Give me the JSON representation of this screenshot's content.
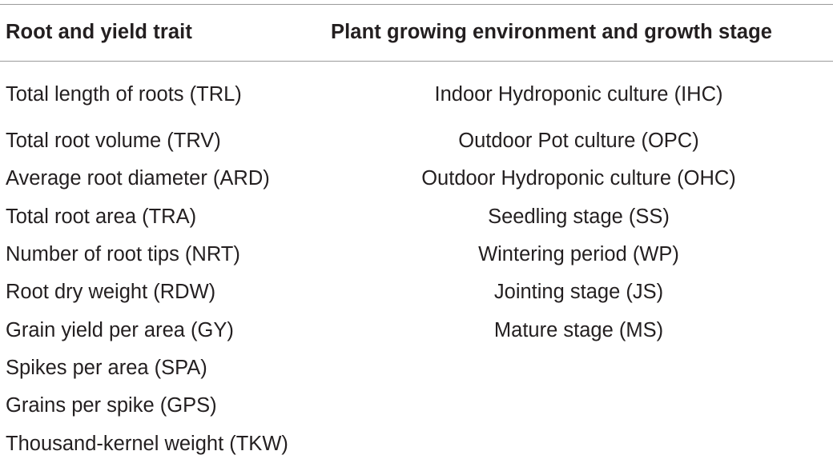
{
  "table": {
    "headers": [
      "Root and yield trait",
      "Plant growing environment and growth stage"
    ],
    "rows": [
      [
        "Total length of roots (TRL)",
        "Indoor Hydroponic culture (IHC)"
      ],
      [
        "Total root volume (TRV)",
        "Outdoor Pot culture (OPC)"
      ],
      [
        "Average root diameter (ARD)",
        "Outdoor Hydroponic culture (OHC)"
      ],
      [
        "Total root area (TRA)",
        "Seedling stage (SS)"
      ],
      [
        "Number of root tips (NRT)",
        "Wintering period (WP)"
      ],
      [
        "Root dry weight (RDW)",
        "Jointing stage (JS)"
      ],
      [
        "Grain yield per area (GY)",
        "Mature stage (MS)"
      ],
      [
        "Spikes per area (SPA)",
        ""
      ],
      [
        "Grains per spike (GPS)",
        ""
      ],
      [
        "Thousand-kernel weight (TKW)",
        ""
      ]
    ]
  },
  "colors": {
    "text": "#231f20",
    "rule": "#9a9a9a",
    "background": "#ffffff"
  }
}
